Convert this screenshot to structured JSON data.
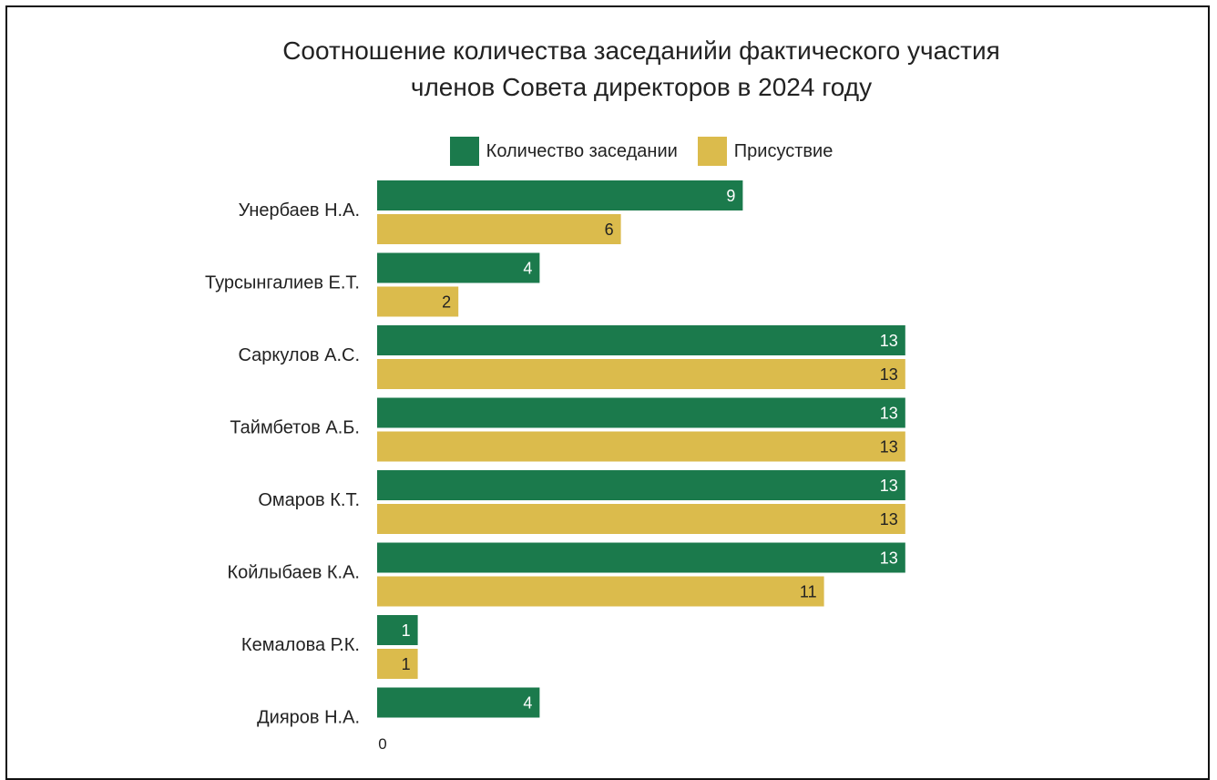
{
  "chart_data": {
    "type": "bar",
    "orientation": "horizontal",
    "title_lines": [
      "Соотношение количества заседанийи фактического участия",
      "членов Совета директоров в 2024 году"
    ],
    "categories": [
      "Унербаев Н.А.",
      "Турсынгалиев Е.Т.",
      "Саркулов А.С.",
      "Таймбетов А.Б.",
      "Омаров К.Т.",
      "Койлыбаев К.А.",
      "Кемалова Р.К.",
      "Дияров Н.А."
    ],
    "series": [
      {
        "name": "Количество заседании",
        "color": "#1b7a4c",
        "label_color": "#ffffff",
        "values": [
          9,
          4,
          13,
          13,
          13,
          13,
          1,
          4
        ]
      },
      {
        "name": "Присуствие",
        "color": "#dbbb4c",
        "label_color": "#222222",
        "values": [
          6,
          2,
          13,
          13,
          13,
          11,
          1,
          null
        ]
      }
    ],
    "x_tick_labels": [
      "0"
    ],
    "xlim": [
      0,
      13
    ],
    "grid": false,
    "legend_position": "top-center"
  }
}
